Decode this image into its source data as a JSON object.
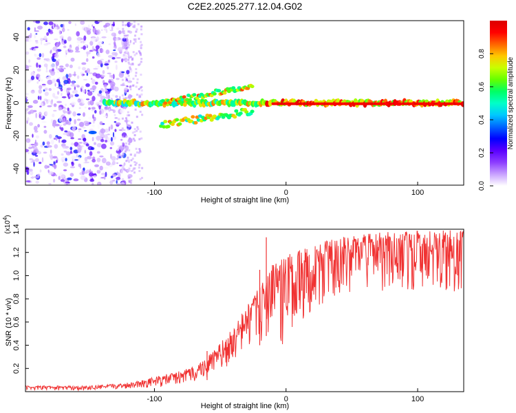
{
  "chart_data": [
    {
      "type": "heatmap",
      "title": "C2E2.2025.277.12.04.G02",
      "xlabel": "Height of straight line (km)",
      "ylabel": "Frequency (Hz)",
      "xlim": [
        -198,
        135
      ],
      "ylim": [
        -50,
        50
      ],
      "xticks": [
        -100,
        0,
        100
      ],
      "yticks": [
        -40,
        -20,
        0,
        20,
        40
      ],
      "colorbar": {
        "label": "Normalized spectral amplitude",
        "range": [
          0.0,
          1.0
        ],
        "ticks": [
          "0.0",
          "0.2",
          "0.4",
          "0.6",
          "0.8"
        ],
        "tick_values": [
          0.0,
          0.2,
          0.4,
          0.6,
          0.8
        ],
        "colors": [
          "#ffffff",
          "#c8a0ff",
          "#8c3cff",
          "#5a00ff",
          "#0000ff",
          "#0064ff",
          "#00c8ff",
          "#00ffc8",
          "#00ff64",
          "#64ff00",
          "#c8ff00",
          "#ffc800",
          "#ff6400",
          "#ff0000",
          "#dc0000"
        ]
      }
    },
    {
      "type": "line",
      "title": "",
      "xlabel": "Height of straight line (km)",
      "ylabel": "SNR (10 * v/v)",
      "multiplier": "(x10",
      "multiplier_exp": "4",
      "xlim": [
        -198,
        135
      ],
      "ylim": [
        0,
        1.4
      ],
      "xticks": [
        -100,
        0,
        100
      ],
      "yticks": [
        "0.2",
        "0.4",
        "0.6",
        "0.8",
        "1.0",
        "1.2",
        "1.4"
      ],
      "ytick_values": [
        0.2,
        0.4,
        0.6,
        0.8,
        1.0,
        1.2,
        1.4
      ],
      "color": "#f03232",
      "envelope": {
        "x": [
          -198,
          -150,
          -125,
          -110,
          -95,
          -80,
          -70,
          -60,
          -50,
          -40,
          -30,
          -20,
          -15,
          -10,
          -5,
          0,
          5,
          10,
          20,
          30,
          40,
          60,
          80,
          100,
          120,
          135
        ],
        "low": [
          0.01,
          0.01,
          0.02,
          0.03,
          0.03,
          0.05,
          0.07,
          0.1,
          0.15,
          0.22,
          0.32,
          0.4,
          0.48,
          0.55,
          0.62,
          0.7,
          0.78,
          0.85,
          0.95,
          1.02,
          1.08,
          1.12,
          1.12,
          1.12,
          1.12,
          1.1
        ],
        "high": [
          0.05,
          0.05,
          0.07,
          0.1,
          0.14,
          0.18,
          0.22,
          0.3,
          0.42,
          0.55,
          0.75,
          0.9,
          1.0,
          1.1,
          1.15,
          1.18,
          1.2,
          1.22,
          1.26,
          1.3,
          1.33,
          1.36,
          1.38,
          1.39,
          1.39,
          1.39
        ]
      },
      "spikes": [
        {
          "x": -15,
          "y": 1.33
        },
        {
          "x": -20,
          "y": 1.05
        },
        {
          "x": -60,
          "y": 0.35
        },
        {
          "x": 12,
          "y": 1.05
        }
      ]
    }
  ]
}
